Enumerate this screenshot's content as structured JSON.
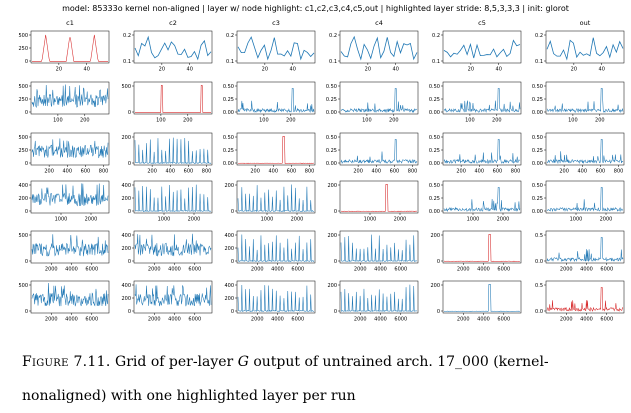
{
  "figure": {
    "header": "model: 85333o kernel non-aligned  |  layer w/ node highlight: c1,c2,c3,c4,c5,out  |  highlighted layer stride: 8,5,3,3,3  |  init: glorot",
    "caption": {
      "label": "Figure 7.11.",
      "before": "Grid of per-layer",
      "symbol": "G",
      "after": "output of untrained arch. 17_000 (kernel-nonaligned) with one highlighted layer per run"
    }
  },
  "colors": {
    "normal": "#1f77b4",
    "highlight": "#d62728"
  },
  "chart_data": {
    "type": "line",
    "columns": [
      "c1",
      "c2",
      "c3",
      "c4",
      "c5",
      "out"
    ],
    "rows": [
      {
        "row": 1,
        "xlim": [
          0,
          56
        ],
        "xticks": [
          "20",
          "40"
        ],
        "cells": [
          {
            "yticks": [
              "500",
              "250",
              "0"
            ],
            "highlight": true,
            "pattern": "c1-spikes"
          },
          {
            "yticks": [
              "0.2",
              "0.1"
            ],
            "highlight": false,
            "pattern": "wave"
          },
          {
            "yticks": [
              "0.2",
              "0.1"
            ],
            "highlight": false,
            "pattern": "wave"
          },
          {
            "yticks": [
              "0.2",
              "0.1"
            ],
            "highlight": false,
            "pattern": "wave"
          },
          {
            "yticks": [
              "0.2",
              "0.1"
            ],
            "highlight": false,
            "pattern": "wave"
          },
          {
            "yticks": [
              "0.2",
              "0.1"
            ],
            "highlight": false,
            "pattern": "wave"
          }
        ]
      },
      {
        "row": 2,
        "xlim": [
          0,
          290
        ],
        "xticks": [
          "100",
          "200"
        ],
        "cells": [
          {
            "yticks": [
              "500",
              "250",
              "0"
            ],
            "highlight": false,
            "pattern": "dense"
          },
          {
            "yticks": [
              "500",
              "0"
            ],
            "highlight": true,
            "pattern": "spikes"
          },
          {
            "yticks": [
              "0.50",
              "0.25",
              "0.00"
            ],
            "highlight": false,
            "pattern": "spiky-low"
          },
          {
            "yticks": [
              "0.50",
              "0.25",
              "0.00"
            ],
            "highlight": false,
            "pattern": "spiky-low"
          },
          {
            "yticks": [
              "0.50",
              "0.25",
              "0.00"
            ],
            "highlight": false,
            "pattern": "spiky-low"
          },
          {
            "yticks": [
              "0.50",
              "0.25",
              "0.00"
            ],
            "highlight": false,
            "pattern": "spiky-low"
          }
        ]
      },
      {
        "row": 3,
        "xlim": [
          0,
          860
        ],
        "xticks": [
          "200",
          "400",
          "600",
          "800"
        ],
        "cells": [
          {
            "yticks": [
              "500",
              "250",
              "0"
            ],
            "highlight": false,
            "pattern": "dense"
          },
          {
            "yticks": [
              "200",
              "0"
            ],
            "highlight": false,
            "pattern": "comb"
          },
          {
            "yticks": [
              "0.50",
              "0.25",
              "0.00"
            ],
            "highlight": true,
            "pattern": "single"
          },
          {
            "yticks": [
              "0.50",
              "0.25",
              "0.00"
            ],
            "highlight": false,
            "pattern": "spiky-low"
          },
          {
            "yticks": [
              "0.50",
              "0.25",
              "0.00"
            ],
            "highlight": false,
            "pattern": "spiky-low"
          },
          {
            "yticks": [
              "0.50",
              "0.25",
              "0.00"
            ],
            "highlight": false,
            "pattern": "spiky-low"
          }
        ]
      },
      {
        "row": 4,
        "xlim": [
          0,
          2600
        ],
        "xticks": [
          "1000",
          "2000"
        ],
        "cells": [
          {
            "yticks": [
              "400",
              "200",
              "0"
            ],
            "highlight": false,
            "pattern": "dense"
          },
          {
            "yticks": [
              "400",
              "200",
              "0"
            ],
            "highlight": false,
            "pattern": "comb"
          },
          {
            "yticks": [
              "200",
              "0"
            ],
            "highlight": false,
            "pattern": "comb"
          },
          {
            "yticks": [
              "200",
              "0"
            ],
            "highlight": true,
            "pattern": "single"
          },
          {
            "yticks": [
              "0.50",
              "0.25",
              "0.00"
            ],
            "highlight": false,
            "pattern": "spiky-low"
          },
          {
            "yticks": [
              "0.50",
              "0.25",
              "0.00"
            ],
            "highlight": false,
            "pattern": "spiky-low"
          }
        ]
      },
      {
        "row": 5,
        "xlim": [
          0,
          7700
        ],
        "xticks": [
          "2000",
          "4000",
          "6000"
        ],
        "cells": [
          {
            "yticks": [
              "500",
              "0"
            ],
            "highlight": false,
            "pattern": "dense"
          },
          {
            "yticks": [
              "400",
              "200",
              "0"
            ],
            "highlight": false,
            "pattern": "dense"
          },
          {
            "yticks": [
              "400",
              "200",
              "0"
            ],
            "highlight": false,
            "pattern": "comb"
          },
          {
            "yticks": [
              "200",
              "0"
            ],
            "highlight": false,
            "pattern": "comb"
          },
          {
            "yticks": [
              "200",
              "0"
            ],
            "highlight": true,
            "pattern": "single"
          },
          {
            "yticks": [
              "0.5",
              "0.0"
            ],
            "highlight": false,
            "pattern": "spiky-low"
          }
        ]
      },
      {
        "row": 6,
        "xlim": [
          0,
          7700
        ],
        "xticks": [
          "2000",
          "4000",
          "6000"
        ],
        "cells": [
          {
            "yticks": [
              "500",
              "0"
            ],
            "highlight": false,
            "pattern": "dense"
          },
          {
            "yticks": [
              "400",
              "200",
              "0"
            ],
            "highlight": false,
            "pattern": "dense"
          },
          {
            "yticks": [
              "400",
              "200",
              "0"
            ],
            "highlight": false,
            "pattern": "comb"
          },
          {
            "yticks": [
              "200",
              "0"
            ],
            "highlight": false,
            "pattern": "comb"
          },
          {
            "yticks": [
              "200",
              "0"
            ],
            "highlight": false,
            "pattern": "single"
          },
          {
            "yticks": [
              "0.5",
              "0.0"
            ],
            "highlight": true,
            "pattern": "spiky-low"
          }
        ]
      }
    ]
  }
}
